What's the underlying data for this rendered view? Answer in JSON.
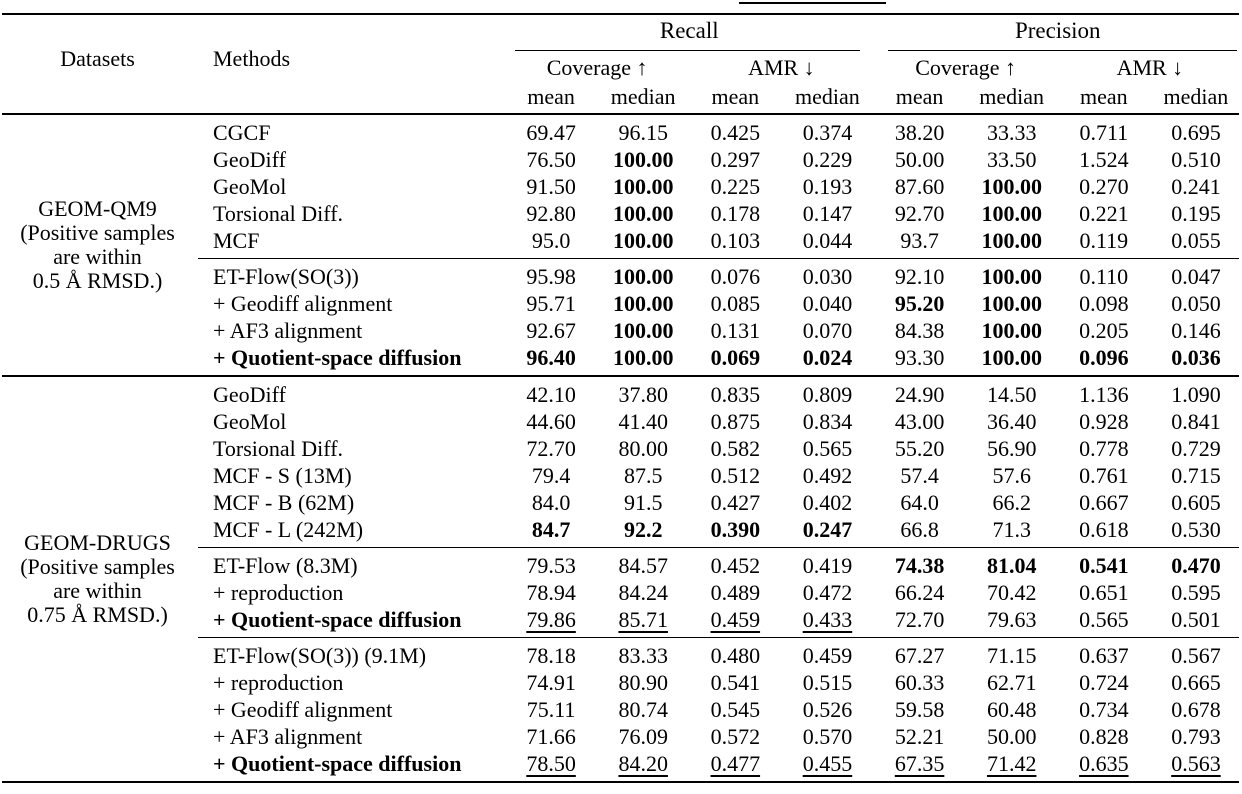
{
  "page": {
    "background": "#ffffff",
    "text_color": "#000000",
    "rule_color": "#000000"
  },
  "header": {
    "datasets_label": "Datasets",
    "methods_label": "Methods",
    "groups": [
      {
        "label": "Recall"
      },
      {
        "label": "Precision"
      }
    ],
    "subgroup_labels": [
      "Coverage ↑",
      "AMR ↓",
      "Coverage ↑",
      "AMR ↓"
    ],
    "stat_labels": [
      "mean",
      "median",
      "mean",
      "median",
      "mean",
      "median",
      "mean",
      "median"
    ]
  },
  "sections": [
    {
      "dataset_lines": [
        "GEOM-QM9",
        "(Positive samples",
        "are within",
        "0.5 Å RMSD.)"
      ],
      "blocks": [
        {
          "rows": [
            {
              "method": "CGCF",
              "values": [
                "69.47",
                "96.15",
                "0.425",
                "0.374",
                "38.20",
                "33.33",
                "0.711",
                "0.695"
              ],
              "bold": [
                0,
                0,
                0,
                0,
                0,
                0,
                0,
                0
              ],
              "underline": [
                0,
                0,
                0,
                0,
                0,
                0,
                0,
                0
              ]
            },
            {
              "method": "GeoDiff",
              "values": [
                "76.50",
                "100.00",
                "0.297",
                "0.229",
                "50.00",
                "33.50",
                "1.524",
                "0.510"
              ],
              "bold": [
                0,
                1,
                0,
                0,
                0,
                0,
                0,
                0
              ],
              "underline": [
                0,
                0,
                0,
                0,
                0,
                0,
                0,
                0
              ]
            },
            {
              "method": "GeoMol",
              "values": [
                "91.50",
                "100.00",
                "0.225",
                "0.193",
                "87.60",
                "100.00",
                "0.270",
                "0.241"
              ],
              "bold": [
                0,
                1,
                0,
                0,
                0,
                1,
                0,
                0
              ],
              "underline": [
                0,
                0,
                0,
                0,
                0,
                0,
                0,
                0
              ]
            },
            {
              "method": "Torsional Diff.",
              "values": [
                "92.80",
                "100.00",
                "0.178",
                "0.147",
                "92.70",
                "100.00",
                "0.221",
                "0.195"
              ],
              "bold": [
                0,
                1,
                0,
                0,
                0,
                1,
                0,
                0
              ],
              "underline": [
                0,
                0,
                0,
                0,
                0,
                0,
                0,
                0
              ]
            },
            {
              "method": "MCF",
              "values": [
                "95.0",
                "100.00",
                "0.103",
                "0.044",
                "93.7",
                "100.00",
                "0.119",
                "0.055"
              ],
              "bold": [
                0,
                1,
                0,
                0,
                0,
                1,
                0,
                0
              ],
              "underline": [
                0,
                0,
                0,
                0,
                0,
                0,
                0,
                0
              ]
            }
          ]
        },
        {
          "rows": [
            {
              "method": "ET-Flow(SO(3))",
              "values": [
                "95.98",
                "100.00",
                "0.076",
                "0.030",
                "92.10",
                "100.00",
                "0.110",
                "0.047"
              ],
              "bold": [
                0,
                1,
                0,
                0,
                0,
                1,
                0,
                0
              ],
              "underline": [
                0,
                0,
                0,
                0,
                0,
                0,
                0,
                0
              ]
            },
            {
              "method": "+ Geodiff alignment",
              "values": [
                "95.71",
                "100.00",
                "0.085",
                "0.040",
                "95.20",
                "100.00",
                "0.098",
                "0.050"
              ],
              "bold": [
                0,
                1,
                0,
                0,
                1,
                1,
                0,
                0
              ],
              "underline": [
                0,
                0,
                0,
                0,
                0,
                0,
                0,
                0
              ]
            },
            {
              "method": "+ AF3 alignment",
              "values": [
                "92.67",
                "100.00",
                "0.131",
                "0.070",
                "84.38",
                "100.00",
                "0.205",
                "0.146"
              ],
              "bold": [
                0,
                1,
                0,
                0,
                0,
                1,
                0,
                0
              ],
              "underline": [
                0,
                0,
                0,
                0,
                0,
                0,
                0,
                0
              ]
            },
            {
              "method": "+ Quotient-space diffusion",
              "method_bold": true,
              "values": [
                "96.40",
                "100.00",
                "0.069",
                "0.024",
                "93.30",
                "100.00",
                "0.096",
                "0.036"
              ],
              "bold": [
                1,
                1,
                1,
                1,
                0,
                1,
                1,
                1
              ],
              "underline": [
                0,
                0,
                0,
                0,
                0,
                0,
                0,
                0
              ]
            }
          ]
        }
      ]
    },
    {
      "dataset_lines": [
        "GEOM-DRUGS",
        "(Positive samples",
        "are within",
        "0.75 Å RMSD.)"
      ],
      "blocks": [
        {
          "rows": [
            {
              "method": "GeoDiff",
              "values": [
                "42.10",
                "37.80",
                "0.835",
                "0.809",
                "24.90",
                "14.50",
                "1.136",
                "1.090"
              ],
              "bold": [
                0,
                0,
                0,
                0,
                0,
                0,
                0,
                0
              ],
              "underline": [
                0,
                0,
                0,
                0,
                0,
                0,
                0,
                0
              ]
            },
            {
              "method": "GeoMol",
              "values": [
                "44.60",
                "41.40",
                "0.875",
                "0.834",
                "43.00",
                "36.40",
                "0.928",
                "0.841"
              ],
              "bold": [
                0,
                0,
                0,
                0,
                0,
                0,
                0,
                0
              ],
              "underline": [
                0,
                0,
                0,
                0,
                0,
                0,
                0,
                0
              ]
            },
            {
              "method": "Torsional Diff.",
              "values": [
                "72.70",
                "80.00",
                "0.582",
                "0.565",
                "55.20",
                "56.90",
                "0.778",
                "0.729"
              ],
              "bold": [
                0,
                0,
                0,
                0,
                0,
                0,
                0,
                0
              ],
              "underline": [
                0,
                0,
                0,
                0,
                0,
                0,
                0,
                0
              ]
            },
            {
              "method": "MCF - S (13M)",
              "values": [
                "79.4",
                "87.5",
                "0.512",
                "0.492",
                "57.4",
                "57.6",
                "0.761",
                "0.715"
              ],
              "bold": [
                0,
                0,
                0,
                0,
                0,
                0,
                0,
                0
              ],
              "underline": [
                0,
                0,
                0,
                0,
                0,
                0,
                0,
                0
              ]
            },
            {
              "method": "MCF - B (62M)",
              "values": [
                "84.0",
                "91.5",
                "0.427",
                "0.402",
                "64.0",
                "66.2",
                "0.667",
                "0.605"
              ],
              "bold": [
                0,
                0,
                0,
                0,
                0,
                0,
                0,
                0
              ],
              "underline": [
                0,
                0,
                0,
                0,
                0,
                0,
                0,
                0
              ]
            },
            {
              "method": "MCF - L (242M)",
              "values": [
                "84.7",
                "92.2",
                "0.390",
                "0.247",
                "66.8",
                "71.3",
                "0.618",
                "0.530"
              ],
              "bold": [
                1,
                1,
                1,
                1,
                0,
                0,
                0,
                0
              ],
              "underline": [
                0,
                0,
                0,
                0,
                0,
                0,
                0,
                0
              ]
            }
          ]
        },
        {
          "rows": [
            {
              "method": "ET-Flow (8.3M)",
              "values": [
                "79.53",
                "84.57",
                "0.452",
                "0.419",
                "74.38",
                "81.04",
                "0.541",
                "0.470"
              ],
              "bold": [
                0,
                0,
                0,
                0,
                1,
                1,
                1,
                1
              ],
              "underline": [
                0,
                0,
                0,
                0,
                0,
                0,
                0,
                0
              ]
            },
            {
              "method": "+ reproduction",
              "values": [
                "78.94",
                "84.24",
                "0.489",
                "0.472",
                "66.24",
                "70.42",
                "0.651",
                "0.595"
              ],
              "bold": [
                0,
                0,
                0,
                0,
                0,
                0,
                0,
                0
              ],
              "underline": [
                0,
                0,
                0,
                0,
                0,
                0,
                0,
                0
              ]
            },
            {
              "method": "+ Quotient-space diffusion",
              "method_bold": true,
              "values": [
                "79.86",
                "85.71",
                "0.459",
                "0.433",
                "72.70",
                "79.63",
                "0.565",
                "0.501"
              ],
              "bold": [
                0,
                0,
                0,
                0,
                0,
                0,
                0,
                0
              ],
              "underline": [
                1,
                1,
                1,
                1,
                0,
                0,
                0,
                0
              ]
            }
          ]
        },
        {
          "rows": [
            {
              "method": "ET-Flow(SO(3)) (9.1M)",
              "values": [
                "78.18",
                "83.33",
                "0.480",
                "0.459",
                "67.27",
                "71.15",
                "0.637",
                "0.567"
              ],
              "bold": [
                0,
                0,
                0,
                0,
                0,
                0,
                0,
                0
              ],
              "underline": [
                0,
                0,
                0,
                0,
                0,
                0,
                0,
                0
              ]
            },
            {
              "method": "+ reproduction",
              "values": [
                "74.91",
                "80.90",
                "0.541",
                "0.515",
                "60.33",
                "62.71",
                "0.724",
                "0.665"
              ],
              "bold": [
                0,
                0,
                0,
                0,
                0,
                0,
                0,
                0
              ],
              "underline": [
                0,
                0,
                0,
                0,
                0,
                0,
                0,
                0
              ]
            },
            {
              "method": "+ Geodiff alignment",
              "values": [
                "75.11",
                "80.74",
                "0.545",
                "0.526",
                "59.58",
                "60.48",
                "0.734",
                "0.678"
              ],
              "bold": [
                0,
                0,
                0,
                0,
                0,
                0,
                0,
                0
              ],
              "underline": [
                0,
                0,
                0,
                0,
                0,
                0,
                0,
                0
              ]
            },
            {
              "method": "+ AF3 alignment",
              "values": [
                "71.66",
                "76.09",
                "0.572",
                "0.570",
                "52.21",
                "50.00",
                "0.828",
                "0.793"
              ],
              "bold": [
                0,
                0,
                0,
                0,
                0,
                0,
                0,
                0
              ],
              "underline": [
                0,
                0,
                0,
                0,
                0,
                0,
                0,
                0
              ]
            },
            {
              "method": "+ Quotient-space diffusion",
              "method_bold": true,
              "values": [
                "78.50",
                "84.20",
                "0.477",
                "0.455",
                "67.35",
                "71.42",
                "0.635",
                "0.563"
              ],
              "bold": [
                0,
                0,
                0,
                0,
                0,
                0,
                0,
                0
              ],
              "underline": [
                1,
                1,
                1,
                1,
                1,
                1,
                1,
                1
              ]
            }
          ]
        }
      ]
    }
  ]
}
